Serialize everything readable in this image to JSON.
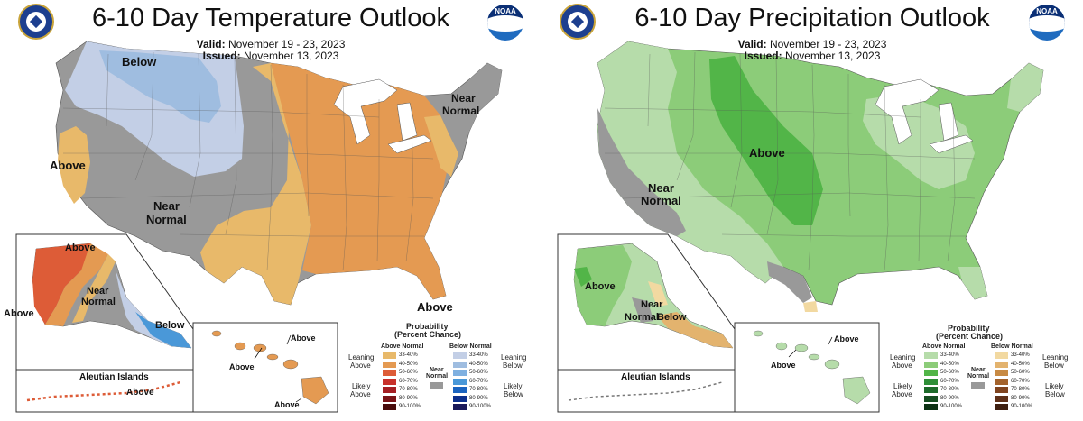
{
  "temperature": {
    "title": "6-10 Day Temperature Outlook",
    "valid_label": "Valid:",
    "valid_dates": "November 19 - 23, 2023",
    "issued_label": "Issued:",
    "issued_date": "November 13, 2023",
    "logo_noaa": "NOAA",
    "labels": {
      "below": "Below",
      "near_normal_ne_1": "Near",
      "near_normal_ne_2": "Normal",
      "above_west": "Above",
      "near_normal_sw_1": "Near",
      "near_normal_sw_2": "Normal",
      "above_fl": "Above",
      "ak_above_n": "Above",
      "ak_near_1": "Near",
      "ak_near_2": "Normal",
      "ak_above_w": "Above",
      "ak_below": "Below",
      "aleutian": "Aleutian Islands",
      "aleutian_above": "Above",
      "hi_above_1": "Above",
      "hi_above_2": "Above",
      "hi_above_3": "Above"
    },
    "legend": {
      "title_1": "Probability",
      "title_2": "(Percent Chance)",
      "col_left": "Above Normal",
      "col_right": "Below Normal",
      "leaning_left_1": "Leaning",
      "leaning_left_2": "Above",
      "likely_left_1": "Likely",
      "likely_left_2": "Above",
      "near_1": "Near",
      "near_2": "Normal",
      "leaning_right_1": "Leaning",
      "leaning_right_2": "Below",
      "likely_right_1": "Likely",
      "likely_right_2": "Below",
      "ranges": [
        "33-40%",
        "40-50%",
        "50-60%",
        "60-70%",
        "70-80%",
        "80-90%",
        "90-100%"
      ],
      "left_colors": [
        "#e8b96a",
        "#e49a52",
        "#dd5c37",
        "#c8312b",
        "#a51f24",
        "#7a1418",
        "#4a0c0c"
      ],
      "right_colors": [
        "#c3cfe6",
        "#9fbde0",
        "#7fb0e0",
        "#4a98d8",
        "#1b64c0",
        "#0c2f8c",
        "#1a1a5a"
      ]
    }
  },
  "precipitation": {
    "title": "6-10 Day Precipitation Outlook",
    "valid_label": "Valid:",
    "valid_dates": "November 19 - 23, 2023",
    "issued_label": "Issued:",
    "issued_date": "November 13, 2023",
    "logo_noaa": "NOAA",
    "labels": {
      "above_center": "Above",
      "near_normal_w_1": "Near",
      "near_normal_w_2": "Normal",
      "ak_above": "Above",
      "ak_near_1": "Near",
      "ak_near_2": "Normal",
      "ak_below": "Below",
      "aleutian": "Aleutian Islands",
      "hi_above_1": "Above",
      "hi_above_2": "Above"
    },
    "legend": {
      "title_1": "Probability",
      "title_2": "(Percent Chance)",
      "col_left": "Above Normal",
      "col_right": "Below Normal",
      "leaning_left_1": "Leaning",
      "leaning_left_2": "Above",
      "likely_left_1": "Likely",
      "likely_left_2": "Above",
      "near_1": "Near",
      "near_2": "Normal",
      "leaning_right_1": "Leaning",
      "leaning_right_2": "Below",
      "likely_right_1": "Likely",
      "likely_right_2": "Below",
      "ranges": [
        "33-40%",
        "40-50%",
        "50-60%",
        "60-70%",
        "70-80%",
        "80-90%",
        "90-100%"
      ],
      "left_colors": [
        "#b6dcaa",
        "#8ccc79",
        "#52b548",
        "#2e8f37",
        "#1d6b2a",
        "#154d20",
        "#0d3315"
      ],
      "right_colors": [
        "#f2d9a1",
        "#e3b36e",
        "#c88a43",
        "#a4632c",
        "#80441f",
        "#5f3018",
        "#3f1f10"
      ]
    }
  },
  "colors": {
    "gray": "#999999",
    "water": "#ffffff",
    "border": "#555555"
  }
}
